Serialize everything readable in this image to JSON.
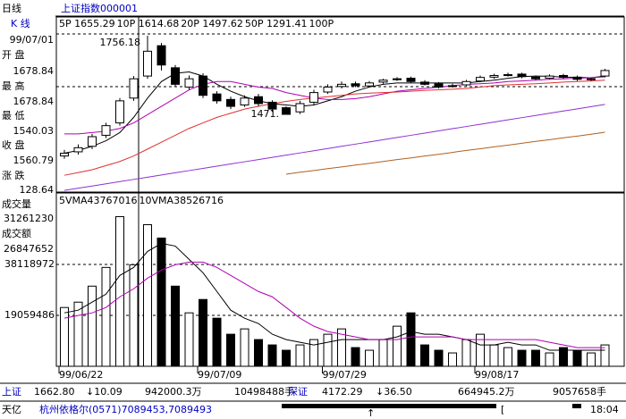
{
  "ui": {
    "period": "日线",
    "symbol": "上证指数000001",
    "view": "K  线",
    "side": {
      "date": "99/07/01",
      "open_label": "开  盘",
      "open": "1678.84",
      "high_label": "最  高",
      "high": "1678.84",
      "low_label": "最  低",
      "low": "1540.03",
      "close_label": "收  盘",
      "close": "1560.79",
      "change_label": "涨  跌",
      "change": "128.64",
      "volume_label": "成交量",
      "volume": "31261230",
      "amount_label": "成交额",
      "amount": "26847652"
    },
    "ticker": [
      "上证",
      "1662.80",
      "↓10.09",
      "942000.3万",
      "10498488手",
      "深证",
      "4172.29",
      "↓36.50",
      "664945.2万",
      "9057658手"
    ],
    "status": [
      "天亿",
      "杭州依格尔(0571)7089453,7089493",
      "[",
      "18:04"
    ]
  },
  "chart_data": [
    {
      "type": "candlestick",
      "ylim": [
        1189,
        1821
      ],
      "annotations": [
        {
          "text": "1756.18",
          "index": 6,
          "value": 1756.18
        },
        {
          "text": "1471.",
          "index": 16,
          "value": 1471
        }
      ],
      "open": [
        1320,
        1335,
        1355,
        1395,
        1440,
        1530,
        1610,
        1720,
        1640,
        1570,
        1610,
        1545,
        1525,
        1505,
        1535,
        1515,
        1495,
        1480,
        1515,
        1552,
        1572,
        1582,
        1574,
        1588,
        1597,
        1602,
        1588,
        1582,
        1572,
        1578,
        1592,
        1606,
        1613,
        1617,
        1606,
        1602,
        1612,
        1606,
        1597,
        1610
      ],
      "high": [
        1342,
        1362,
        1400,
        1440,
        1530,
        1610,
        1756.18,
        1730,
        1650,
        1612,
        1620,
        1555,
        1535,
        1540,
        1545,
        1522,
        1500,
        1520,
        1560,
        1580,
        1590,
        1590,
        1592,
        1600,
        1606,
        1608,
        1595,
        1588,
        1582,
        1596,
        1612,
        1618,
        1622,
        1622,
        1612,
        1616,
        1618,
        1612,
        1605,
        1636
      ],
      "low": [
        1310,
        1325,
        1345,
        1385,
        1430,
        1520,
        1600,
        1630,
        1570,
        1560,
        1530,
        1510,
        1490,
        1498,
        1500,
        1480,
        1471,
        1472,
        1505,
        1545,
        1565,
        1570,
        1570,
        1582,
        1592,
        1585,
        1576,
        1565,
        1568,
        1574,
        1588,
        1600,
        1608,
        1602,
        1595,
        1598,
        1600,
        1592,
        1592,
        1605
      ],
      "close": [
        1330,
        1350,
        1390,
        1430,
        1520,
        1600,
        1700,
        1650,
        1580,
        1600,
        1540,
        1520,
        1500,
        1530,
        1510,
        1490,
        1471,
        1510,
        1550,
        1570,
        1580,
        1575,
        1585,
        1595,
        1600,
        1590,
        1580,
        1570,
        1575,
        1590,
        1605,
        1612,
        1615,
        1608,
        1600,
        1610,
        1605,
        1598,
        1600,
        1630
      ],
      "series": [
        {
          "name": "5P 1655.29",
          "color": "#000000",
          "values": [
            1330,
            1340,
            1355,
            1375,
            1405,
            1460,
            1530,
            1590,
            1620,
            1625,
            1610,
            1580,
            1555,
            1535,
            1520,
            1510,
            1505,
            1500,
            1505,
            1520,
            1535,
            1555,
            1570,
            1580,
            1585,
            1585,
            1585,
            1585,
            1585,
            1585,
            1590,
            1595,
            1602,
            1608,
            1610,
            1609,
            1606,
            1605,
            1604,
            1610
          ]
        },
        {
          "name": "10P 1614.68",
          "color": "#b000b0",
          "values": [
            1400,
            1400,
            1405,
            1410,
            1420,
            1440,
            1470,
            1500,
            1530,
            1560,
            1580,
            1590,
            1590,
            1580,
            1570,
            1565,
            1550,
            1540,
            1530,
            1525,
            1525,
            1528,
            1535,
            1545,
            1555,
            1560,
            1565,
            1570,
            1575,
            1580,
            1582,
            1585,
            1590,
            1592,
            1595,
            1598,
            1600,
            1602,
            1604,
            1607
          ]
        },
        {
          "name": "20P 1497.62",
          "color": "#e03030",
          "values": [
            1250,
            1260,
            1270,
            1285,
            1300,
            1320,
            1345,
            1370,
            1395,
            1420,
            1440,
            1460,
            1475,
            1490,
            1500,
            1510,
            1518,
            1525,
            1530,
            1535,
            1540,
            1545,
            1548,
            1550,
            1552,
            1555,
            1558,
            1560,
            1562,
            1565,
            1570,
            1575,
            1578,
            1580,
            1582,
            1585,
            1588,
            1590,
            1592,
            1595
          ]
        },
        {
          "name": "50P 1291.41",
          "color": "#9030d0",
          "values": [
            1195,
            1203,
            1211,
            1219,
            1227,
            1235,
            1243,
            1251,
            1259,
            1267,
            1275,
            1283,
            1291,
            1299,
            1307,
            1315,
            1323,
            1331,
            1339,
            1347,
            1355,
            1363,
            1371,
            1379,
            1387,
            1395,
            1403,
            1411,
            1419,
            1427,
            1435,
            1443,
            1451,
            1459,
            1467,
            1475,
            1483,
            1491,
            1499,
            1507
          ]
        },
        {
          "name": "100P",
          "color": "#b06020",
          "values": [
            null,
            null,
            null,
            null,
            null,
            null,
            null,
            null,
            null,
            null,
            null,
            null,
            null,
            null,
            null,
            null,
            1254,
            1261,
            1267,
            1274,
            1280,
            1287,
            1293,
            1300,
            1307,
            1313,
            1320,
            1326,
            1333,
            1340,
            1346,
            1353,
            1359,
            1366,
            1373,
            1379,
            1386,
            1392,
            1399,
            1406
          ]
        }
      ]
    },
    {
      "type": "bar",
      "ylim": [
        0,
        64200000
      ],
      "yticks": [
        19059486,
        38118972
      ],
      "grid": true,
      "categories": [
        "99/06/22",
        null,
        null,
        null,
        null,
        null,
        null,
        null,
        null,
        null,
        "99/07/09",
        null,
        null,
        null,
        null,
        null,
        null,
        null,
        null,
        "99/07/29",
        null,
        null,
        null,
        null,
        null,
        null,
        null,
        null,
        null,
        null,
        "99/08/17",
        null,
        null,
        null,
        null,
        null,
        null,
        null,
        null,
        null
      ],
      "values": [
        22000000,
        24000000,
        30000000,
        37000000,
        56000000,
        38000000,
        53000000,
        48000000,
        30000000,
        20000000,
        25000000,
        18000000,
        12000000,
        14000000,
        10000000,
        8000000,
        6000000,
        8000000,
        10000000,
        12000000,
        14000000,
        7000000,
        6000000,
        10000000,
        15000000,
        20000000,
        8000000,
        6000000,
        5000000,
        10000000,
        12000000,
        8000000,
        7000000,
        6000000,
        6000000,
        5000000,
        7000000,
        6000000,
        5000000,
        8000000
      ],
      "series": [
        {
          "name": "5VMA43767016",
          "color": "#000000",
          "values": [
            20000000,
            21000000,
            24000000,
            27000000,
            34000000,
            37000000,
            43000000,
            46000000,
            45000000,
            40000000,
            35000000,
            28000000,
            21000000,
            18000000,
            16000000,
            12000000,
            10000000,
            9000000,
            8000000,
            9000000,
            10000000,
            10000000,
            10000000,
            10000000,
            11000000,
            13000000,
            12000000,
            12000000,
            11000000,
            10000000,
            8000000,
            8000000,
            9000000,
            8000000,
            8000000,
            6000000,
            6000000,
            6000000,
            6000000,
            6000000
          ]
        },
        {
          "name": "10VMA38526716",
          "color": "#b000b0",
          "values": [
            18000000,
            19000000,
            20000000,
            22000000,
            26000000,
            29000000,
            33000000,
            36000000,
            38000000,
            39000000,
            39000000,
            37000000,
            34000000,
            31000000,
            28000000,
            26000000,
            22000000,
            18000000,
            15000000,
            13000000,
            12000000,
            11000000,
            10000000,
            10000000,
            10000000,
            11000000,
            11000000,
            11000000,
            11000000,
            10000000,
            10000000,
            10000000,
            10000000,
            10000000,
            10000000,
            9000000,
            8000000,
            7000000,
            7000000,
            7000000
          ]
        }
      ]
    }
  ]
}
